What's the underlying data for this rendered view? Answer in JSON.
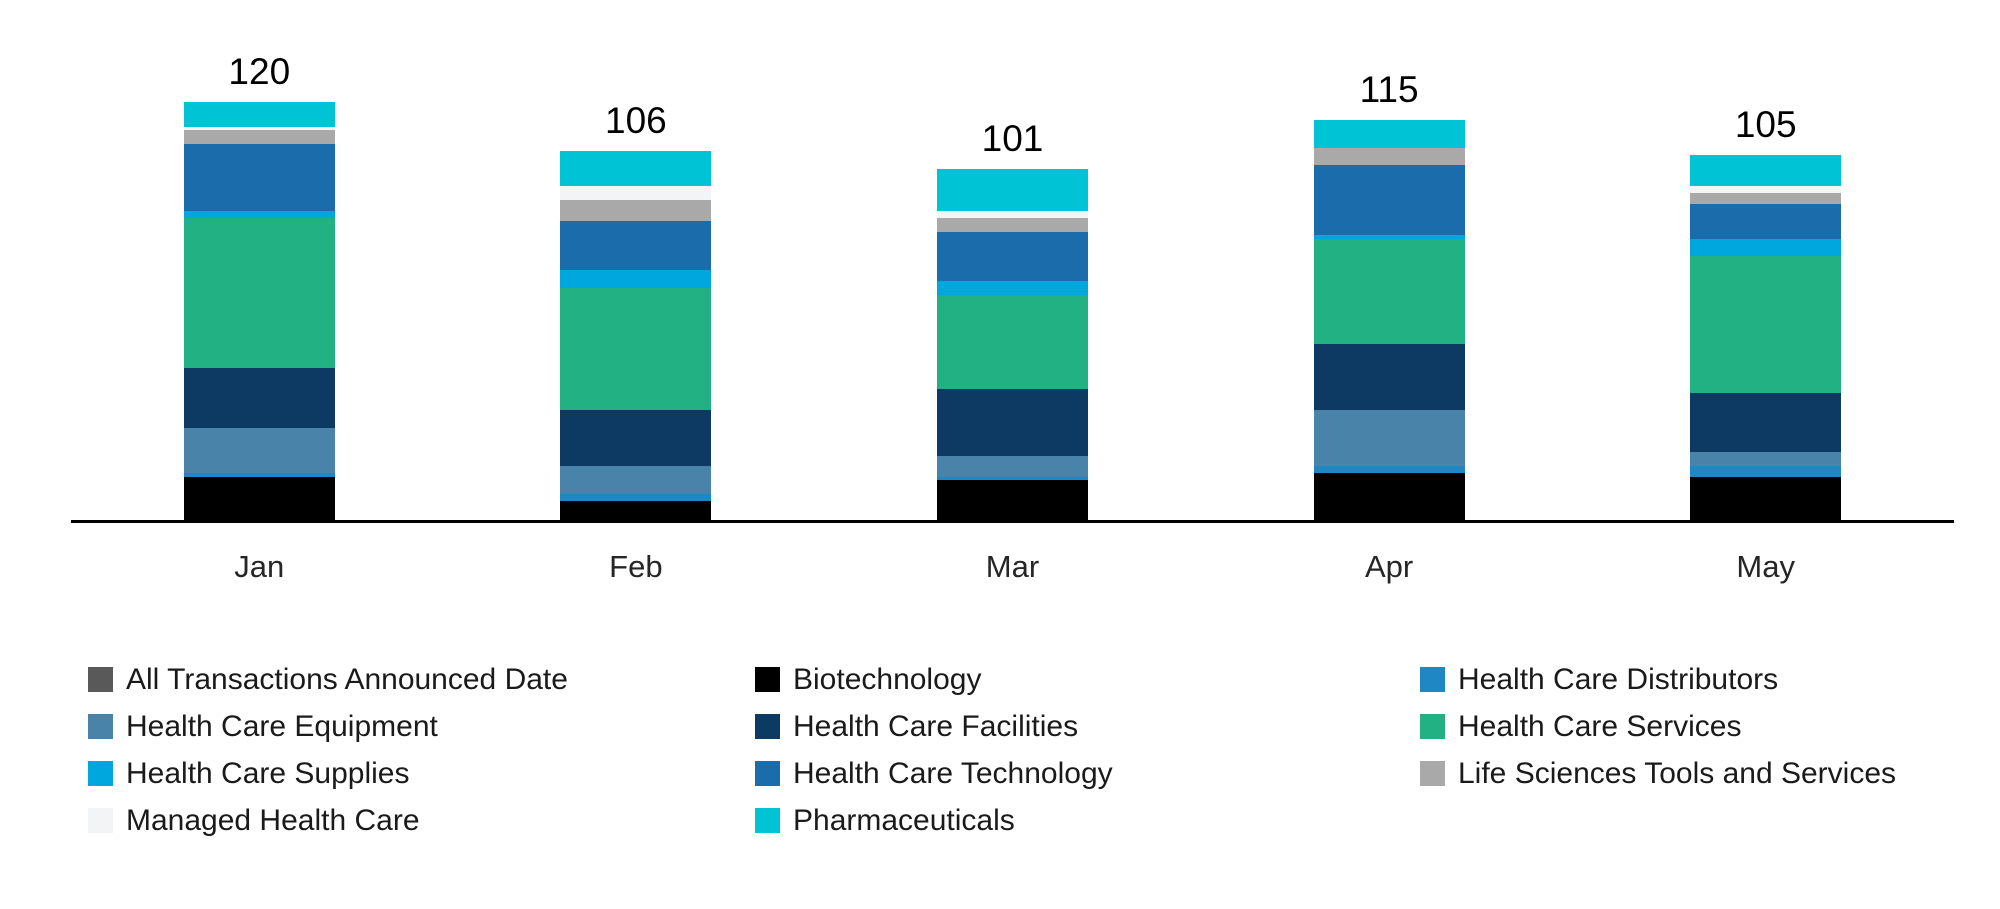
{
  "chart_data": {
    "type": "bar",
    "stacked": true,
    "title": "",
    "xlabel": "",
    "ylabel": "",
    "categories": [
      "Jan",
      "Feb",
      "Mar",
      "Apr",
      "May"
    ],
    "totals": [
      120,
      106,
      101,
      115,
      105
    ],
    "series": [
      {
        "name": "All Transactions Announced Date",
        "color": "#595959",
        "values": [
          0,
          0,
          0,
          0,
          0
        ]
      },
      {
        "name": "Biotechnology",
        "color": "#000000",
        "values": [
          13,
          6,
          12,
          14,
          13
        ]
      },
      {
        "name": "Health Care Distributors",
        "color": "#1e87c4",
        "values": [
          1,
          2,
          1,
          2,
          3
        ]
      },
      {
        "name": "Health Care Equipment",
        "color": "#4a83a9",
        "values": [
          13,
          8,
          6,
          16,
          4
        ]
      },
      {
        "name": "Health Care Facilities",
        "color": "#0c3a63",
        "values": [
          17,
          16,
          19,
          19,
          17
        ]
      },
      {
        "name": "Health Care Services",
        "color": "#21b182",
        "values": [
          43,
          35,
          27,
          30,
          39
        ]
      },
      {
        "name": "Health Care Supplies",
        "color": "#00a7de",
        "values": [
          2,
          5,
          4,
          1,
          5
        ]
      },
      {
        "name": "Health Care Technology",
        "color": "#1b6cab",
        "values": [
          19,
          14,
          14,
          20,
          10
        ]
      },
      {
        "name": "Life Sciences Tools and Services",
        "color": "#a9a9a9",
        "values": [
          4,
          6,
          4,
          5,
          3
        ]
      },
      {
        "name": "Managed Health Care",
        "color": "#f2f4f6",
        "values": [
          1,
          4,
          2,
          0,
          2
        ]
      },
      {
        "name": "Pharmaceuticals",
        "color": "#00c4d6",
        "values": [
          7,
          10,
          12,
          8,
          9
        ]
      }
    ],
    "ylim": [
      0,
      130
    ],
    "grid": false,
    "y_axis_visible": false,
    "x_axis_line_color": "#000000",
    "data_labels": "total-above-each-bar",
    "legend_position": "bottom",
    "legend_columns": 3
  }
}
